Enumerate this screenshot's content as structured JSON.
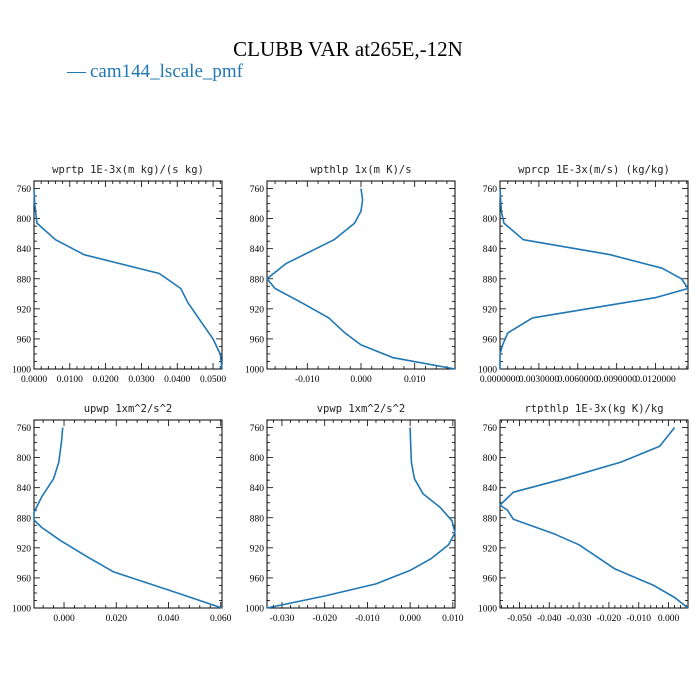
{
  "figure": {
    "title": "CLUBB VAR at265E,-12N",
    "legend": {
      "label": "cam144_lscale_pmf",
      "color": "#1f77b4",
      "position": "top-left"
    }
  },
  "chart_data": [
    {
      "type": "line",
      "title": "wprtp  1E-3x(m kg)/(s kg)",
      "ylim": [
        1000,
        750
      ],
      "ytick_labels": [
        "760",
        "800",
        "840",
        "880",
        "920",
        "960",
        "1000"
      ],
      "yticks": [
        760,
        800,
        840,
        880,
        920,
        960,
        1000
      ],
      "xlim": [
        0.0,
        0.0525
      ],
      "xticks": [
        0.0,
        0.01,
        0.02,
        0.03,
        0.04,
        0.05
      ],
      "xtick_labels": [
        "0.0000",
        "0.0100",
        "0.0200",
        "0.0300",
        "0.0400",
        "0.0500"
      ],
      "series": [
        {
          "name": "cam144_lscale_pmf",
          "color": "#1f77b4",
          "x": [
            0.0,
            0.0002,
            0.0008,
            0.006,
            0.014,
            0.035,
            0.041,
            0.043,
            0.0465,
            0.05,
            0.052,
            0.0525
          ],
          "y": [
            760,
            780,
            806,
            828,
            848,
            873,
            893,
            912,
            936,
            960,
            980,
            1000
          ]
        }
      ]
    },
    {
      "type": "line",
      "title": "wpthlp  1x(m K)/s",
      "ylim": [
        1000,
        750
      ],
      "ytick_labels": [
        "760",
        "800",
        "840",
        "880",
        "920",
        "960",
        "1000"
      ],
      "yticks": [
        760,
        800,
        840,
        880,
        920,
        960,
        1000
      ],
      "xlim": [
        -0.0175,
        0.0175
      ],
      "xticks": [
        -0.01,
        0.0,
        0.01
      ],
      "xtick_labels": [
        "-0.010",
        "0.000",
        "0.010"
      ],
      "series": [
        {
          "name": "cam144_lscale_pmf",
          "color": "#1f77b4",
          "x": [
            0.0,
            0.0003,
            0.0,
            -0.0012,
            -0.005,
            -0.014,
            -0.0175,
            -0.016,
            -0.011,
            -0.006,
            -0.003,
            0.0,
            0.006,
            0.0175
          ],
          "y": [
            760,
            775,
            790,
            806,
            828,
            860,
            880,
            893,
            912,
            932,
            952,
            968,
            985,
            1000
          ]
        }
      ]
    },
    {
      "type": "line",
      "title": "wprcp  1E-3x(m/s) (kg/kg)",
      "ylim": [
        1000,
        750
      ],
      "ytick_labels": [
        "760",
        "800",
        "840",
        "880",
        "920",
        "960",
        "1000"
      ],
      "yticks": [
        760,
        800,
        840,
        880,
        920,
        960,
        1000
      ],
      "xlim": [
        0.0,
        0.0145
      ],
      "xticks": [
        0.0,
        0.003,
        0.006,
        0.009,
        0.012
      ],
      "xtick_labels": [
        "0.0000000",
        "0.0030000",
        "0.0060000",
        "0.0090000",
        "0.0120000"
      ],
      "series": [
        {
          "name": "cam144_lscale_pmf",
          "color": "#1f77b4",
          "x": [
            0.0,
            0.0001,
            0.0003,
            0.0018,
            0.0085,
            0.0125,
            0.014,
            0.0145,
            0.012,
            0.0085,
            0.0025,
            0.0006,
            0.0002,
            0.0,
            0.0
          ],
          "y": [
            760,
            790,
            806,
            828,
            848,
            866,
            880,
            893,
            905,
            915,
            932,
            952,
            968,
            980,
            1000
          ]
        }
      ]
    },
    {
      "type": "line",
      "title": "upwp  1xm^2/s^2",
      "ylim": [
        1000,
        750
      ],
      "ytick_labels": [
        "760",
        "800",
        "840",
        "880",
        "920",
        "960",
        "1000"
      ],
      "yticks": [
        760,
        800,
        840,
        880,
        920,
        960,
        1000
      ],
      "xlim": [
        -0.0115,
        0.0605
      ],
      "xticks": [
        0.0,
        0.02,
        0.04,
        0.06
      ],
      "xtick_labels": [
        "0.000",
        "0.020",
        "0.040",
        "0.060"
      ],
      "series": [
        {
          "name": "cam144_lscale_pmf",
          "color": "#1f77b4",
          "x": [
            -0.0005,
            -0.001,
            -0.002,
            -0.004,
            -0.0085,
            -0.0115,
            -0.0115,
            -0.0085,
            -0.0015,
            0.009,
            0.019,
            0.04,
            0.0605
          ],
          "y": [
            760,
            780,
            806,
            828,
            852,
            873,
            883,
            893,
            910,
            932,
            952,
            976,
            1000
          ]
        }
      ]
    },
    {
      "type": "line",
      "title": "vpwp  1xm^2/s^2",
      "ylim": [
        1000,
        750
      ],
      "ytick_labels": [
        "760",
        "800",
        "840",
        "880",
        "920",
        "960",
        "1000"
      ],
      "yticks": [
        760,
        800,
        840,
        880,
        920,
        960,
        1000
      ],
      "xlim": [
        -0.0335,
        0.0105
      ],
      "xticks": [
        -0.03,
        -0.02,
        -0.01,
        0.0,
        0.01
      ],
      "xtick_labels": [
        "-0.030",
        "-0.020",
        "-0.010",
        "0.000",
        "0.010"
      ],
      "series": [
        {
          "name": "cam144_lscale_pmf",
          "color": "#1f77b4",
          "x": [
            0.0,
            0.0001,
            0.0003,
            0.001,
            0.003,
            0.007,
            0.0098,
            0.0105,
            0.009,
            0.005,
            0.0,
            -0.008,
            -0.02,
            -0.0335
          ],
          "y": [
            760,
            780,
            806,
            828,
            848,
            866,
            884,
            900,
            916,
            934,
            950,
            968,
            984,
            1000
          ]
        }
      ]
    },
    {
      "type": "line",
      "title": "rtpthlp  1E-3x(kg K)/kg",
      "ylim": [
        1000,
        750
      ],
      "ytick_labels": [
        "760",
        "800",
        "840",
        "880",
        "920",
        "960",
        "1000"
      ],
      "yticks": [
        760,
        800,
        840,
        880,
        920,
        960,
        1000
      ],
      "xlim": [
        -0.0565,
        0.0065
      ],
      "xticks": [
        -0.05,
        -0.04,
        -0.03,
        -0.02,
        -0.01,
        0.0
      ],
      "xtick_labels": [
        "-0.050",
        "-0.040",
        "-0.030",
        "-0.020",
        "-0.010",
        "0.000"
      ],
      "series": [
        {
          "name": "cam144_lscale_pmf",
          "color": "#1f77b4",
          "x": [
            0.002,
            -0.003,
            -0.016,
            -0.035,
            -0.052,
            -0.0565,
            -0.054,
            -0.052,
            -0.038,
            -0.03,
            -0.018,
            -0.005,
            0.002,
            0.0065
          ],
          "y": [
            760,
            785,
            806,
            828,
            846,
            863,
            870,
            882,
            902,
            916,
            948,
            970,
            986,
            1000
          ]
        }
      ]
    }
  ]
}
